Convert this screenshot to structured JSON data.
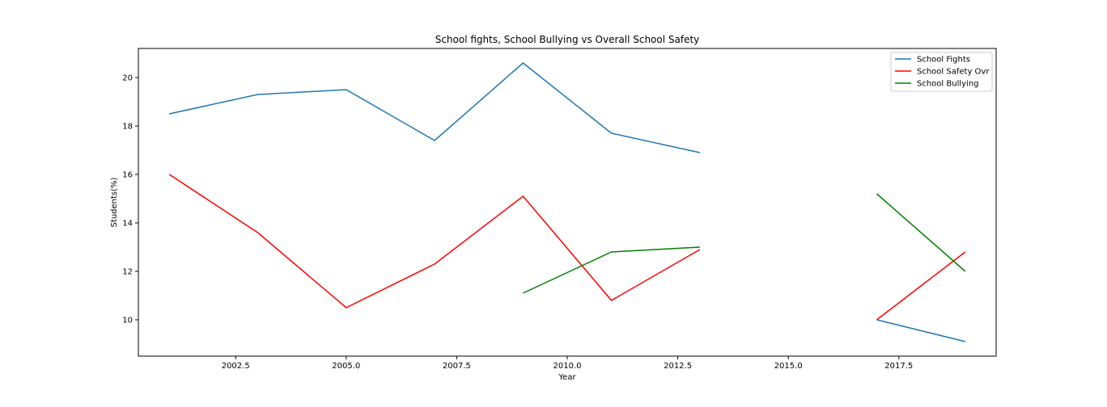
{
  "chart_data": {
    "type": "line",
    "title": "School fights, School Bullying vs Overall School Safety",
    "xlabel": "Year",
    "ylabel": "Students(%)",
    "xlim": [
      2000.3,
      2019.7
    ],
    "ylim": [
      8.5,
      21.2
    ],
    "xticks": [
      2002.5,
      2005.0,
      2007.5,
      2010.0,
      2012.5,
      2015.0,
      2017.5
    ],
    "yticks": [
      10,
      12,
      14,
      16,
      18,
      20
    ],
    "grid": false,
    "legend_position": "top-right",
    "series": [
      {
        "name": "School Fights",
        "color": "#1f77b4",
        "segments": [
          [
            [
              2001,
              18.5
            ],
            [
              2003,
              19.3
            ],
            [
              2005,
              19.5
            ],
            [
              2007,
              17.4
            ],
            [
              2009,
              20.6
            ],
            [
              2011,
              17.7
            ],
            [
              2013,
              16.9
            ]
          ],
          [
            [
              2017,
              10.0
            ],
            [
              2019,
              9.1
            ]
          ]
        ]
      },
      {
        "name": "School Safety Ovr",
        "color": "#ff0000",
        "segments": [
          [
            [
              2001,
              16.0
            ],
            [
              2003,
              13.6
            ],
            [
              2005,
              10.5
            ],
            [
              2007,
              12.3
            ],
            [
              2009,
              15.1
            ],
            [
              2011,
              10.8
            ],
            [
              2013,
              12.9
            ]
          ],
          [
            [
              2017,
              10.0
            ],
            [
              2019,
              12.8
            ]
          ]
        ]
      },
      {
        "name": "School Bullying",
        "color": "#008000",
        "segments": [
          [
            [
              2009,
              11.1
            ],
            [
              2011,
              12.8
            ],
            [
              2013,
              13.0
            ]
          ],
          [
            [
              2017,
              15.2
            ],
            [
              2019,
              12.0
            ]
          ]
        ]
      }
    ]
  }
}
